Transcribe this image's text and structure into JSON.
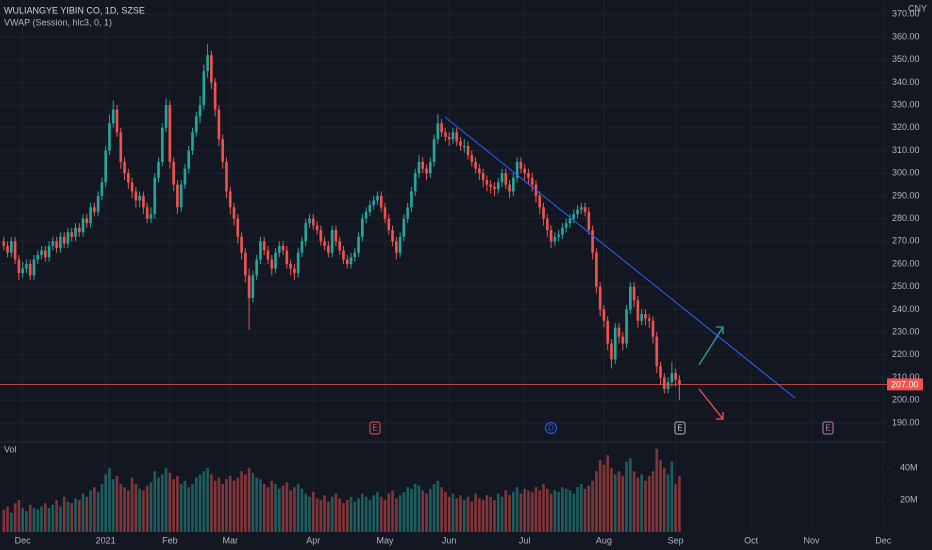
{
  "chart_data": {
    "type": "candlestick",
    "title": "WULIANGYE YIBIN CO, 1D, SZSE",
    "indicator": "VWAP (Session, hlc3, 0, 1)",
    "currency": "CNY",
    "volume_label": "Vol",
    "up_color": "#26a69a",
    "down_color": "#ef5350",
    "grid": true,
    "events": [
      "E",
      "D",
      "E",
      "E"
    ],
    "xlim": [
      -1,
      234
    ],
    "xticks": [
      {
        "value": 5,
        "label": "Dec"
      },
      {
        "value": 27,
        "label": "2021"
      },
      {
        "value": 44,
        "label": "Feb"
      },
      {
        "value": 60,
        "label": "Mar"
      },
      {
        "value": 82,
        "label": "Apr"
      },
      {
        "value": 101,
        "label": "May"
      },
      {
        "value": 118,
        "label": "Jun"
      },
      {
        "value": 138,
        "label": "Jul"
      },
      {
        "value": 159,
        "label": "Aug"
      },
      {
        "value": 178,
        "label": "Sep"
      },
      {
        "value": 198,
        "label": "Oct"
      },
      {
        "value": 214,
        "label": "Nov"
      },
      {
        "value": 233,
        "label": "Dec"
      }
    ],
    "ylim": [
      182.5,
      376.3
    ],
    "yticks": [
      {
        "value": 190,
        "label": "190.00"
      },
      {
        "value": 200,
        "label": "200.00"
      },
      {
        "value": 210,
        "label": "210.00"
      },
      {
        "value": 220,
        "label": "220.00"
      },
      {
        "value": 230,
        "label": "230.00"
      },
      {
        "value": 240,
        "label": "240.00"
      },
      {
        "value": 250,
        "label": "250.00"
      },
      {
        "value": 260,
        "label": "260.00"
      },
      {
        "value": 270,
        "label": "270.00"
      },
      {
        "value": 280,
        "label": "280.00"
      },
      {
        "value": 290,
        "label": "290.00"
      },
      {
        "value": 300,
        "label": "300.00"
      },
      {
        "value": 310,
        "label": "310.00"
      },
      {
        "value": 320,
        "label": "320.00"
      },
      {
        "value": 330,
        "label": "330.00"
      },
      {
        "value": 340,
        "label": "340.00"
      },
      {
        "value": 350,
        "label": "350.00"
      },
      {
        "value": 360,
        "label": "360.00"
      },
      {
        "value": 370,
        "label": "370.00"
      }
    ],
    "last_price": {
      "value": 207,
      "label": "207.00"
    },
    "volume_ylim": [
      0,
      53.75
    ],
    "volume_yticks": [
      {
        "value": 20,
        "label": "20M"
      },
      {
        "value": 40,
        "label": "40M"
      }
    ],
    "open": [
      270,
      268,
      265,
      270,
      262,
      256,
      258,
      260,
      255,
      262,
      264,
      266,
      263,
      268,
      270,
      267,
      272,
      269,
      274,
      272,
      276,
      274,
      280,
      278,
      285,
      283,
      290,
      296,
      310,
      322,
      328,
      318,
      305,
      300,
      296,
      292,
      288,
      290,
      285,
      280,
      282,
      298,
      305,
      320,
      330,
      305,
      295,
      285,
      295,
      302,
      310,
      318,
      325,
      330,
      345,
      352,
      340,
      328,
      315,
      305,
      292,
      285,
      280,
      272,
      265,
      255,
      245,
      255,
      262,
      270,
      266,
      262,
      258,
      265,
      268,
      266,
      260,
      258,
      256,
      265,
      270,
      278,
      280,
      277,
      275,
      270,
      268,
      265,
      275,
      270,
      266,
      262,
      260,
      263,
      265,
      272,
      280,
      283,
      286,
      288,
      290,
      285,
      280,
      275,
      270,
      265,
      272,
      280,
      285,
      292,
      300,
      305,
      302,
      300,
      305,
      315,
      322,
      318,
      316,
      315,
      318,
      314,
      312,
      312,
      308,
      305,
      302,
      300,
      297,
      295,
      294,
      293,
      296,
      300,
      295,
      292,
      298,
      305,
      302,
      300,
      298,
      295,
      290,
      285,
      280,
      275,
      270,
      272,
      273,
      276,
      278,
      280,
      282,
      284,
      285,
      283,
      275,
      265,
      250,
      240,
      235,
      225,
      218,
      232,
      228,
      225,
      240,
      250,
      244,
      235,
      238,
      236,
      235,
      228,
      215,
      210,
      205,
      208,
      212,
      209
    ],
    "high": [
      272,
      270,
      272,
      272,
      264,
      261,
      262,
      262,
      264,
      266,
      268,
      268,
      270,
      272,
      272,
      274,
      274,
      276,
      276,
      278,
      278,
      282,
      282,
      287,
      287,
      292,
      298,
      312,
      326,
      332,
      330,
      320,
      307,
      302,
      298,
      294,
      292,
      292,
      287,
      285,
      300,
      307,
      322,
      333,
      332,
      307,
      297,
      297,
      304,
      312,
      320,
      327,
      334,
      348,
      357,
      354,
      342,
      330,
      317,
      307,
      294,
      287,
      282,
      274,
      267,
      258,
      257,
      264,
      272,
      272,
      268,
      264,
      267,
      270,
      270,
      268,
      262,
      260,
      267,
      272,
      280,
      282,
      282,
      279,
      277,
      272,
      270,
      277,
      277,
      272,
      268,
      264,
      265,
      267,
      274,
      282,
      285,
      288,
      290,
      292,
      292,
      287,
      282,
      277,
      272,
      274,
      282,
      287,
      294,
      302,
      308,
      307,
      304,
      307,
      317,
      326,
      324,
      320,
      318,
      320,
      320,
      316,
      315,
      314,
      310,
      307,
      304,
      302,
      299,
      297,
      296,
      298,
      302,
      302,
      297,
      300,
      307,
      307,
      304,
      302,
      300,
      297,
      292,
      287,
      282,
      277,
      274,
      275,
      278,
      280,
      282,
      284,
      286,
      287,
      287,
      285,
      277,
      267,
      252,
      242,
      237,
      227,
      234,
      234,
      230,
      242,
      252,
      252,
      246,
      240,
      240,
      238,
      237,
      230,
      217,
      212,
      210,
      217,
      214,
      211
    ],
    "low": [
      266,
      263,
      263,
      260,
      253,
      254,
      256,
      253,
      253,
      260,
      262,
      261,
      261,
      266,
      265,
      265,
      267,
      267,
      270,
      270,
      272,
      272,
      276,
      276,
      281,
      281,
      288,
      294,
      308,
      320,
      316,
      302,
      297,
      293,
      289,
      285,
      285,
      282,
      278,
      278,
      280,
      296,
      303,
      318,
      302,
      292,
      282,
      283,
      293,
      300,
      308,
      316,
      322,
      328,
      342,
      337,
      325,
      312,
      302,
      289,
      282,
      277,
      269,
      262,
      252,
      231,
      243,
      253,
      260,
      264,
      260,
      255,
      256,
      263,
      264,
      258,
      255,
      253,
      254,
      263,
      268,
      276,
      275,
      273,
      268,
      266,
      263,
      263,
      268,
      264,
      260,
      258,
      258,
      261,
      263,
      270,
      278,
      281,
      284,
      286,
      283,
      278,
      273,
      268,
      262,
      263,
      270,
      278,
      283,
      290,
      298,
      300,
      297,
      298,
      303,
      313,
      316,
      314,
      312,
      313,
      312,
      310,
      309,
      306,
      303,
      300,
      297,
      294,
      292,
      291,
      290,
      291,
      294,
      293,
      289,
      290,
      296,
      300,
      297,
      295,
      292,
      287,
      282,
      277,
      272,
      267,
      268,
      270,
      271,
      274,
      276,
      278,
      280,
      282,
      281,
      273,
      262,
      247,
      237,
      232,
      222,
      214,
      216,
      225,
      222,
      223,
      238,
      241,
      232,
      233,
      233,
      232,
      225,
      212,
      207,
      203,
      203,
      206,
      206,
      200
    ],
    "close": [
      268,
      265,
      270,
      262,
      256,
      258,
      260,
      255,
      262,
      264,
      266,
      263,
      268,
      270,
      267,
      272,
      269,
      274,
      272,
      276,
      274,
      280,
      278,
      285,
      283,
      290,
      296,
      310,
      322,
      328,
      318,
      305,
      300,
      296,
      292,
      288,
      290,
      285,
      280,
      282,
      298,
      305,
      320,
      330,
      305,
      295,
      285,
      295,
      302,
      310,
      318,
      325,
      330,
      345,
      352,
      340,
      328,
      315,
      305,
      292,
      285,
      280,
      272,
      265,
      255,
      245,
      255,
      262,
      270,
      266,
      262,
      258,
      265,
      268,
      266,
      260,
      258,
      256,
      265,
      270,
      278,
      280,
      277,
      275,
      270,
      268,
      265,
      275,
      270,
      266,
      262,
      260,
      263,
      265,
      272,
      280,
      283,
      286,
      288,
      290,
      285,
      280,
      275,
      270,
      265,
      272,
      280,
      285,
      292,
      300,
      305,
      302,
      300,
      305,
      315,
      322,
      318,
      316,
      315,
      318,
      314,
      312,
      312,
      308,
      305,
      302,
      300,
      297,
      295,
      294,
      293,
      296,
      300,
      295,
      292,
      298,
      305,
      302,
      300,
      298,
      295,
      290,
      285,
      280,
      275,
      270,
      272,
      273,
      276,
      278,
      280,
      282,
      284,
      285,
      283,
      275,
      265,
      250,
      240,
      235,
      225,
      218,
      232,
      228,
      225,
      240,
      250,
      244,
      235,
      238,
      236,
      235,
      228,
      215,
      210,
      205,
      208,
      212,
      209,
      207
    ],
    "volume": [
      14,
      16,
      12,
      18,
      20,
      15,
      13,
      17,
      15,
      14,
      16,
      18,
      15,
      17,
      20,
      16,
      22,
      19,
      18,
      21,
      20,
      24,
      22,
      26,
      28,
      25,
      30,
      36,
      40,
      33,
      35,
      30,
      28,
      26,
      34,
      30,
      27,
      26,
      29,
      31,
      38,
      34,
      36,
      40,
      37,
      33,
      35,
      30,
      32,
      28,
      30,
      34,
      36,
      38,
      40,
      36,
      32,
      34,
      30,
      33,
      35,
      32,
      34,
      38,
      36,
      40,
      37,
      34,
      33,
      30,
      28,
      32,
      30,
      27,
      29,
      31,
      26,
      28,
      30,
      27,
      24,
      22,
      25,
      21,
      20,
      23,
      19,
      22,
      24,
      21,
      18,
      20,
      22,
      19,
      21,
      24,
      22,
      20,
      23,
      25,
      22,
      20,
      24,
      26,
      21,
      23,
      25,
      28,
      27,
      30,
      29,
      26,
      24,
      27,
      30,
      32,
      28,
      25,
      22,
      24,
      21,
      23,
      20,
      22,
      19,
      24,
      21,
      20,
      23,
      22,
      20,
      24,
      22,
      26,
      23,
      25,
      28,
      24,
      27,
      26,
      25,
      28,
      26,
      30,
      27,
      24,
      26,
      25,
      28,
      27,
      26,
      24,
      28,
      30,
      27,
      29,
      32,
      38,
      45,
      42,
      48,
      40,
      36,
      38,
      35,
      44,
      46,
      38,
      34,
      36,
      32,
      35,
      38,
      52,
      45,
      40,
      36,
      44,
      30,
      35
    ]
  }
}
